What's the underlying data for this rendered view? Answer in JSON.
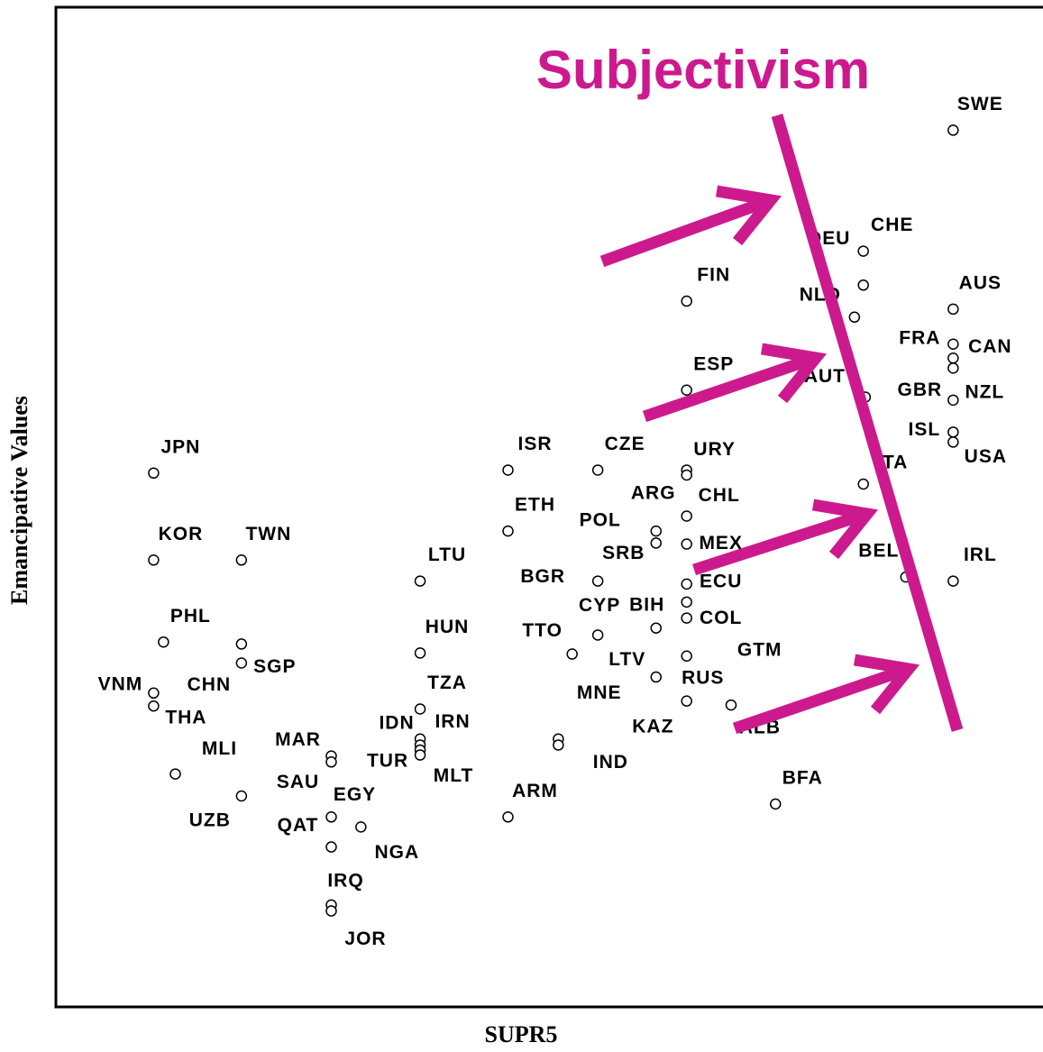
{
  "chart_data": {
    "type": "scatter",
    "xlabel": "SUPR5",
    "ylabel": "Emancipative Values",
    "annotation": "Subjectivism",
    "categories": [
      "SWE",
      "CHE",
      "DEU",
      "FIN",
      "AUS",
      "NLD",
      "FRA",
      "CAN",
      "GBR",
      "NZL",
      "ISL",
      "USA",
      "ESP",
      "AUT",
      "ITA",
      "BEL",
      "IRL",
      "ISR",
      "CZE",
      "URY",
      "ARG",
      "CHL",
      "ETH",
      "POL",
      "SRB",
      "MEX",
      "LTU",
      "BGR",
      "ECU",
      "BIH",
      "CYP",
      "COL",
      "TTO",
      "LTV",
      "HUN",
      "GTM",
      "RUS",
      "MNE",
      "ALB",
      "KAZ",
      "IND",
      "BFA",
      "ARM",
      "TZA",
      "IDN",
      "IRN",
      "TUR",
      "MLT",
      "MAR",
      "SAU",
      "EGY",
      "QAT",
      "NGA",
      "IRQ",
      "JOR",
      "JPN",
      "KOR",
      "TWN",
      "PHL",
      "SGP",
      "CHN",
      "VNM",
      "THA",
      "MLI",
      "UZB"
    ],
    "x": [
      90.9,
      81.8,
      81.8,
      63.9,
      90.9,
      80.9,
      90.9,
      90.9,
      90.9,
      90.9,
      90.9,
      90.9,
      63.9,
      82.0,
      81.8,
      86.1,
      90.9,
      45.8,
      54.9,
      63.9,
      63.9,
      63.9,
      45.8,
      60.8,
      60.8,
      63.9,
      36.9,
      54.9,
      63.9,
      63.9,
      54.9,
      63.9,
      52.3,
      60.8,
      36.9,
      63.9,
      60.8,
      63.9,
      68.4,
      50.9,
      50.9,
      72.9,
      45.8,
      36.9,
      36.9,
      36.9,
      36.9,
      36.9,
      27.9,
      27.9,
      27.9,
      27.9,
      30.9,
      27.9,
      27.9,
      9.9,
      9.9,
      18.8,
      10.9,
      18.8,
      18.8,
      9.9,
      9.9,
      12.1,
      18.8
    ],
    "y": [
      87.7,
      75.6,
      72.2,
      70.6,
      69.8,
      69.0,
      66.3,
      64.9,
      63.9,
      60.7,
      57.5,
      56.5,
      61.7,
      61.0,
      52.3,
      43.0,
      42.6,
      53.7,
      53.7,
      53.7,
      53.2,
      49.1,
      47.6,
      47.6,
      46.4,
      46.3,
      42.6,
      42.6,
      42.3,
      40.5,
      37.2,
      38.9,
      35.3,
      37.9,
      35.4,
      35.1,
      33.0,
      30.6,
      30.2,
      26.8,
      26.2,
      20.3,
      19.0,
      29.8,
      26.8,
      26.2,
      25.7,
      25.2,
      25.1,
      24.5,
      19.0,
      16.0,
      18.0,
      10.2,
      9.6,
      53.4,
      44.7,
      44.7,
      36.5,
      34.4,
      36.3,
      31.4,
      30.1,
      23.3,
      21.1
    ],
    "xlim": [
      0,
      100
    ],
    "ylim": [
      0,
      100
    ],
    "grid": false
  }
}
